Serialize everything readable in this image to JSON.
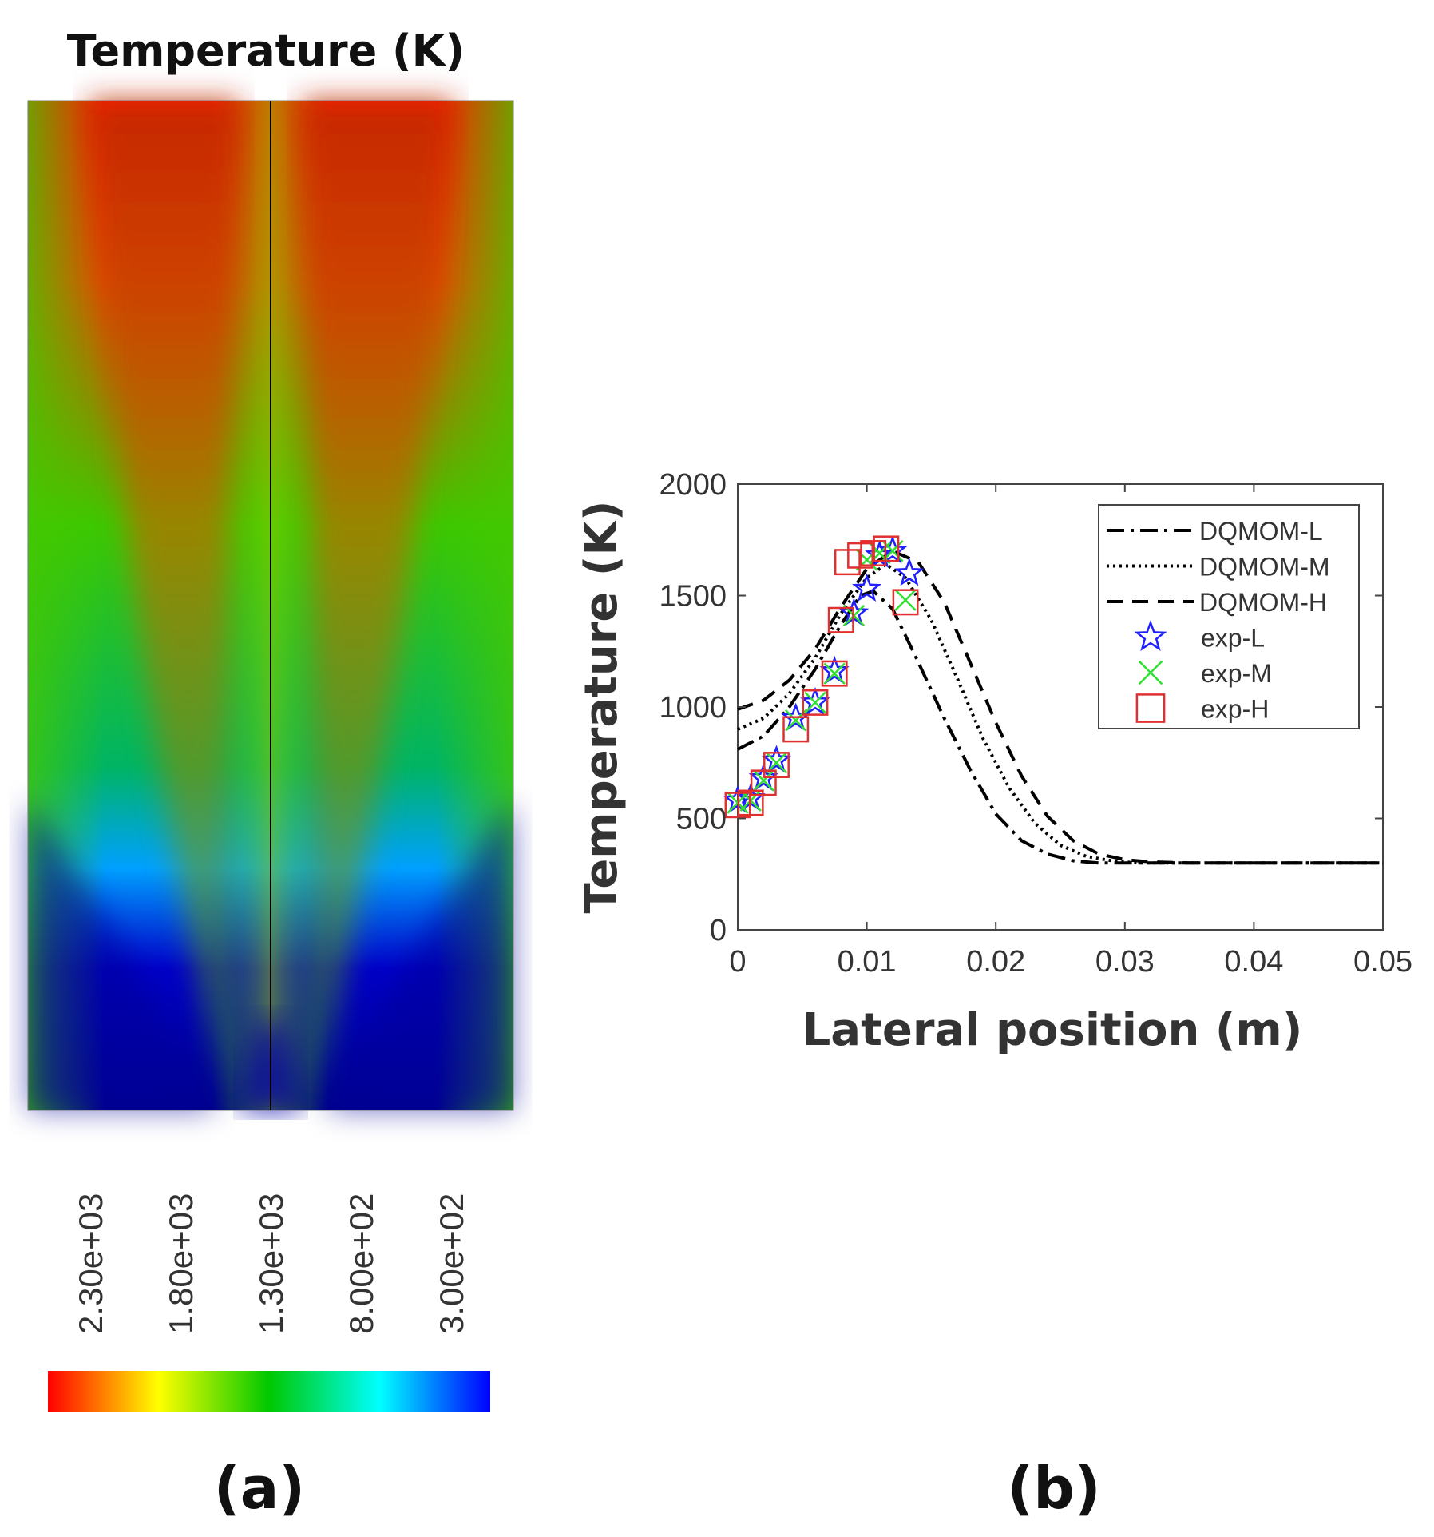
{
  "panel_a": {
    "title": "Temperature (K)",
    "label": "(a)",
    "colorbar": {
      "tick_labels": [
        "2.30e+03",
        "1.80e+03",
        "1.30e+03",
        "8.00e+02",
        "3.00e+02"
      ],
      "colors": [
        "#ff0000",
        "#ff8c00",
        "#ffff00",
        "#00c800",
        "#00ffff",
        "#0000ff"
      ]
    }
  },
  "panel_b": {
    "label": "(b)"
  },
  "chart_data": {
    "type": "line",
    "title": "",
    "xlabel": "Lateral position (m)",
    "ylabel": "Temperature (K)",
    "xlim": [
      0,
      0.05
    ],
    "ylim": [
      0,
      2000
    ],
    "xticks": [
      0,
      0.01,
      0.02,
      0.03,
      0.04,
      0.05
    ],
    "xtick_labels": [
      "0",
      "0.01",
      "0.02",
      "0.03",
      "0.04",
      "0.05"
    ],
    "yticks": [
      0,
      500,
      1000,
      1500,
      2000
    ],
    "ytick_labels": [
      "0",
      "500",
      "1000",
      "1500",
      "2000"
    ],
    "grid": false,
    "legend_position": "top-right",
    "series": [
      {
        "name": "DQMOM-L",
        "kind": "line",
        "dash": "dashdot",
        "color": "#000000",
        "x": [
          0,
          0.002,
          0.004,
          0.006,
          0.008,
          0.0095,
          0.0105,
          0.012,
          0.014,
          0.016,
          0.018,
          0.02,
          0.022,
          0.024,
          0.026,
          0.028,
          0.03,
          0.035,
          0.04,
          0.045,
          0.05
        ],
        "y": [
          810,
          870,
          1000,
          1170,
          1370,
          1500,
          1520,
          1440,
          1200,
          950,
          720,
          520,
          400,
          340,
          310,
          300,
          300,
          300,
          300,
          300,
          300
        ]
      },
      {
        "name": "DQMOM-M",
        "kind": "line",
        "dash": "dotted",
        "color": "#000000",
        "x": [
          0,
          0.002,
          0.004,
          0.006,
          0.008,
          0.01,
          0.0115,
          0.013,
          0.015,
          0.017,
          0.019,
          0.021,
          0.023,
          0.025,
          0.027,
          0.029,
          0.031,
          0.035,
          0.04,
          0.045,
          0.05
        ],
        "y": [
          900,
          950,
          1060,
          1220,
          1420,
          1580,
          1640,
          1580,
          1390,
          1130,
          860,
          640,
          480,
          380,
          330,
          310,
          300,
          300,
          300,
          300,
          300
        ]
      },
      {
        "name": "DQMOM-H",
        "kind": "line",
        "dash": "dashed",
        "color": "#000000",
        "x": [
          0,
          0.002,
          0.004,
          0.006,
          0.008,
          0.01,
          0.012,
          0.014,
          0.016,
          0.018,
          0.02,
          0.022,
          0.024,
          0.026,
          0.028,
          0.03,
          0.032,
          0.035,
          0.04,
          0.045,
          0.05
        ],
        "y": [
          990,
          1030,
          1120,
          1260,
          1450,
          1620,
          1700,
          1650,
          1470,
          1200,
          930,
          690,
          510,
          400,
          340,
          315,
          305,
          300,
          300,
          300,
          300
        ]
      },
      {
        "name": "exp-L",
        "kind": "marker",
        "marker": "star",
        "color": "#2020ff",
        "x": [
          0,
          0.001,
          0.002,
          0.003,
          0.0045,
          0.006,
          0.0075,
          0.009,
          0.01,
          0.011,
          0.012,
          0.0133
        ],
        "y": [
          580,
          590,
          680,
          760,
          950,
          1020,
          1160,
          1420,
          1530,
          1680,
          1700,
          1600
        ]
      },
      {
        "name": "exp-M",
        "kind": "marker",
        "marker": "x",
        "color": "#30e030",
        "x": [
          0,
          0.001,
          0.002,
          0.003,
          0.0045,
          0.006,
          0.0075,
          0.009,
          0.01,
          0.011,
          0.012,
          0.013
        ],
        "y": [
          570,
          580,
          670,
          750,
          940,
          1020,
          1150,
          1410,
          1660,
          1690,
          1700,
          1480
        ]
      },
      {
        "name": "exp-H",
        "kind": "marker",
        "marker": "square",
        "color": "#e03030",
        "x": [
          0,
          0.001,
          0.002,
          0.003,
          0.0045,
          0.006,
          0.0075,
          0.008,
          0.0085,
          0.0095,
          0.0105,
          0.0115,
          0.013
        ],
        "y": [
          560,
          570,
          660,
          740,
          900,
          1020,
          1150,
          1390,
          1650,
          1680,
          1690,
          1710,
          1470
        ]
      }
    ]
  }
}
